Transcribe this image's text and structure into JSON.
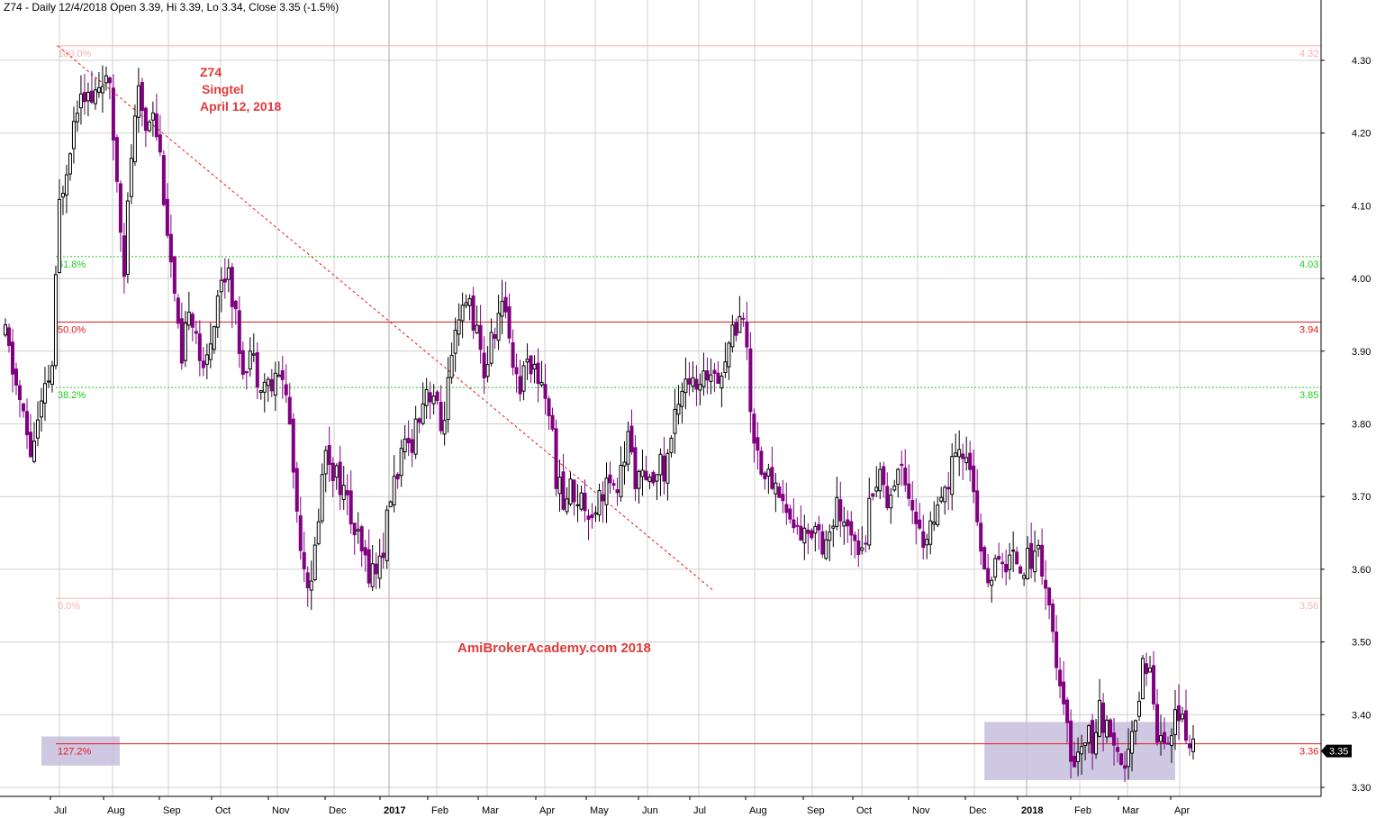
{
  "header": {
    "text": "Z74 - Daily 12/4/2018 Open 3.39, Hi 3.39, Lo 3.34, Close 3.35 (-1.5%)"
  },
  "annotations": {
    "symbol": "Z74",
    "name": "Singtel",
    "date": "April 12, 2018",
    "watermark": "AmiBrokerAcademy.com  2018"
  },
  "colors": {
    "bull_candle": "#000000",
    "bear_candle": "#800080",
    "fib_red": "#e8191c",
    "fib_green": "#22cc22",
    "fib_pink": "#f5b3b3",
    "box_fill": "#c7bedd",
    "grid": "#d0d0d0"
  },
  "chart_data": {
    "type": "candlestick",
    "title": "Z74 - Daily 12/4/2018",
    "ylim": [
      3.28,
      4.33
    ],
    "y_ticks": [
      "4.30",
      "4.20",
      "4.10",
      "4.00",
      "3.90",
      "3.80",
      "3.70",
      "3.60",
      "3.50",
      "3.40",
      "3.30"
    ],
    "x_ticks": [
      {
        "label": "Jul",
        "bold": false
      },
      {
        "label": "Aug",
        "bold": false
      },
      {
        "label": "Sep",
        "bold": false
      },
      {
        "label": "Oct",
        "bold": false
      },
      {
        "label": "Nov",
        "bold": false
      },
      {
        "label": "Dec",
        "bold": false
      },
      {
        "label": "2017",
        "bold": true
      },
      {
        "label": "Feb",
        "bold": false
      },
      {
        "label": "Mar",
        "bold": false
      },
      {
        "label": "Apr",
        "bold": false
      },
      {
        "label": "May",
        "bold": false
      },
      {
        "label": "Jun",
        "bold": false
      },
      {
        "label": "Jul",
        "bold": false
      },
      {
        "label": "Aug",
        "bold": false
      },
      {
        "label": "Sep",
        "bold": false
      },
      {
        "label": "Oct",
        "bold": false
      },
      {
        "label": "Nov",
        "bold": false
      },
      {
        "label": "Dec",
        "bold": false
      },
      {
        "label": "2018",
        "bold": true
      },
      {
        "label": "Feb",
        "bold": false
      },
      {
        "label": "Mar",
        "bold": false
      },
      {
        "label": "Apr",
        "bold": false
      }
    ],
    "last_close": "3.35",
    "fib_levels": [
      {
        "label": "100.0%",
        "value": 4.32,
        "value_label": "4.32",
        "style": "pink"
      },
      {
        "label": "61.8%",
        "value": 4.03,
        "value_label": "4.03",
        "style": "green"
      },
      {
        "label": "50.0%",
        "value": 3.94,
        "value_label": "3.94",
        "style": "red"
      },
      {
        "label": "38.2%",
        "value": 3.85,
        "value_label": "3.85",
        "style": "green"
      },
      {
        "label": "0.0%",
        "value": 3.56,
        "value_label": "3.56",
        "style": "pink"
      },
      {
        "label": "127.2%",
        "value": 3.36,
        "value_label": "3.36",
        "style": "red"
      }
    ],
    "price_path": [
      [
        0,
        3.92
      ],
      [
        4,
        3.83
      ],
      [
        7,
        3.76
      ],
      [
        10,
        3.82
      ],
      [
        13,
        3.88
      ],
      [
        15,
        4.1
      ],
      [
        18,
        4.19
      ],
      [
        21,
        4.27
      ],
      [
        24,
        4.24
      ],
      [
        27,
        4.28
      ],
      [
        29,
        4.25
      ],
      [
        31,
        4.14
      ],
      [
        33,
        4.02
      ],
      [
        35,
        4.17
      ],
      [
        37,
        4.25
      ],
      [
        39,
        4.21
      ],
      [
        41,
        4.24
      ],
      [
        43,
        4.17
      ],
      [
        45,
        4.07
      ],
      [
        47,
        3.97
      ],
      [
        49,
        3.87
      ],
      [
        51,
        3.97
      ],
      [
        53,
        3.93
      ],
      [
        55,
        3.86
      ],
      [
        57,
        3.92
      ],
      [
        59,
        3.98
      ],
      [
        62,
        4.02
      ],
      [
        64,
        3.94
      ],
      [
        66,
        3.88
      ],
      [
        68,
        3.9
      ],
      [
        70,
        3.87
      ],
      [
        72,
        3.86
      ],
      [
        74,
        3.85
      ],
      [
        77,
        3.87
      ],
      [
        79,
        3.8
      ],
      [
        81,
        3.68
      ],
      [
        83,
        3.61
      ],
      [
        85,
        3.57
      ],
      [
        87,
        3.68
      ],
      [
        89,
        3.77
      ],
      [
        91,
        3.74
      ],
      [
        93,
        3.72
      ],
      [
        95,
        3.69
      ],
      [
        97,
        3.65
      ],
      [
        99,
        3.62
      ],
      [
        101,
        3.6
      ],
      [
        103,
        3.6
      ],
      [
        105,
        3.63
      ],
      [
        107,
        3.7
      ],
      [
        109,
        3.74
      ],
      [
        111,
        3.76
      ],
      [
        113,
        3.78
      ],
      [
        115,
        3.82
      ],
      [
        117,
        3.85
      ],
      [
        119,
        3.84
      ],
      [
        121,
        3.79
      ],
      [
        123,
        3.85
      ],
      [
        125,
        3.91
      ],
      [
        127,
        3.95
      ],
      [
        129,
        3.97
      ],
      [
        131,
        3.92
      ],
      [
        133,
        3.87
      ],
      [
        135,
        3.91
      ],
      [
        137,
        3.95
      ],
      [
        139,
        3.96
      ],
      [
        141,
        3.89
      ],
      [
        143,
        3.85
      ],
      [
        145,
        3.9
      ],
      [
        147,
        3.87
      ],
      [
        149,
        3.86
      ],
      [
        151,
        3.82
      ],
      [
        153,
        3.73
      ],
      [
        155,
        3.69
      ],
      [
        157,
        3.71
      ],
      [
        159,
        3.7
      ],
      [
        161,
        3.69
      ],
      [
        163,
        3.68
      ],
      [
        165,
        3.7
      ],
      [
        167,
        3.72
      ],
      [
        169,
        3.7
      ],
      [
        171,
        3.73
      ],
      [
        173,
        3.78
      ],
      [
        175,
        3.73
      ],
      [
        177,
        3.72
      ],
      [
        179,
        3.71
      ],
      [
        181,
        3.75
      ],
      [
        183,
        3.73
      ],
      [
        185,
        3.78
      ],
      [
        187,
        3.84
      ],
      [
        189,
        3.87
      ],
      [
        191,
        3.85
      ],
      [
        193,
        3.84
      ],
      [
        195,
        3.87
      ],
      [
        197,
        3.88
      ],
      [
        199,
        3.87
      ],
      [
        201,
        3.91
      ],
      [
        203,
        3.94
      ],
      [
        205,
        3.96
      ],
      [
        207,
        3.82
      ],
      [
        209,
        3.76
      ],
      [
        211,
        3.73
      ],
      [
        213,
        3.72
      ],
      [
        215,
        3.71
      ],
      [
        217,
        3.68
      ],
      [
        219,
        3.66
      ],
      [
        221,
        3.65
      ],
      [
        223,
        3.64
      ],
      [
        225,
        3.67
      ],
      [
        227,
        3.64
      ],
      [
        229,
        3.65
      ],
      [
        231,
        3.68
      ],
      [
        233,
        3.65
      ],
      [
        235,
        3.66
      ],
      [
        237,
        3.64
      ],
      [
        239,
        3.65
      ],
      [
        241,
        3.72
      ],
      [
        243,
        3.73
      ],
      [
        245,
        3.7
      ],
      [
        247,
        3.72
      ],
      [
        249,
        3.75
      ],
      [
        251,
        3.71
      ],
      [
        253,
        3.66
      ],
      [
        255,
        3.64
      ],
      [
        257,
        3.66
      ],
      [
        259,
        3.67
      ],
      [
        261,
        3.7
      ],
      [
        263,
        3.74
      ],
      [
        265,
        3.75
      ],
      [
        267,
        3.76
      ],
      [
        269,
        3.72
      ],
      [
        270,
        3.65
      ],
      [
        272,
        3.59
      ],
      [
        274,
        3.6
      ],
      [
        276,
        3.6
      ],
      [
        278,
        3.61
      ],
      [
        280,
        3.62
      ],
      [
        282,
        3.61
      ],
      [
        284,
        3.61
      ],
      [
        286,
        3.63
      ],
      [
        288,
        3.61
      ],
      [
        290,
        3.55
      ],
      [
        292,
        3.46
      ],
      [
        294,
        3.4
      ],
      [
        296,
        3.35
      ],
      [
        298,
        3.34
      ],
      [
        300,
        3.38
      ],
      [
        302,
        3.36
      ],
      [
        304,
        3.4
      ],
      [
        306,
        3.38
      ],
      [
        308,
        3.34
      ],
      [
        310,
        3.32
      ],
      [
        312,
        3.35
      ],
      [
        314,
        3.38
      ],
      [
        316,
        3.48
      ],
      [
        318,
        3.46
      ],
      [
        320,
        3.38
      ],
      [
        322,
        3.37
      ],
      [
        324,
        3.38
      ],
      [
        326,
        3.41
      ],
      [
        328,
        3.36
      ],
      [
        330,
        3.35
      ]
    ],
    "trend_line": {
      "from": [
        21,
        4.32
      ],
      "to": [
        190,
        3.57
      ],
      "style": "dotted"
    },
    "highlight_boxes": [
      {
        "x_from": 272,
        "x_to": 325,
        "y_from": 3.31,
        "y_to": 3.39
      },
      {
        "x_from": -5,
        "x_to": 18,
        "y_from": 3.33,
        "y_to": 3.37
      }
    ]
  }
}
